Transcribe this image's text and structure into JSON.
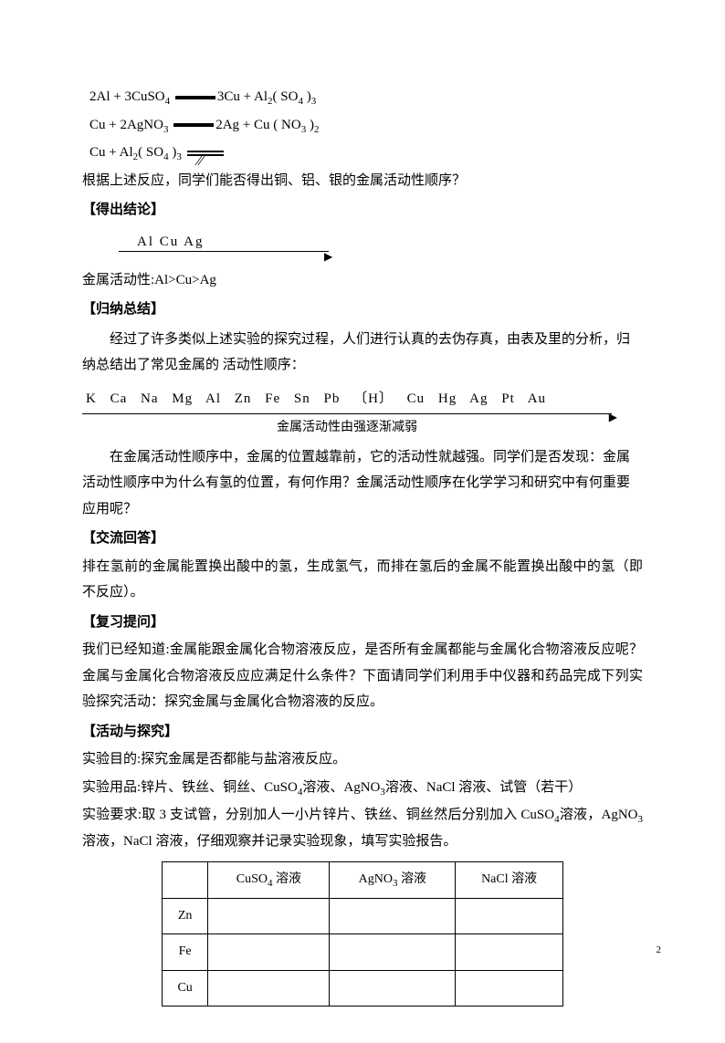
{
  "equations": {
    "eq1_left": "2Al + 3CuSO",
    "eq1_left2": " ",
    "eq1_right": "3Cu + Al",
    "eq1_right2": "( SO",
    "eq1_right3": " )",
    "eq2_left": "Cu + 2AgNO",
    "eq2_right": "2Ag + Cu ( NO",
    "eq2_right2": " )",
    "eq3_left": "Cu + Al",
    "eq3_left2": "( SO",
    "eq3_left3": " )"
  },
  "text": {
    "q1": "根据上述反应，同学们能否得出铜、铝、银的金属活动性顺序？",
    "h1": "【得出结论】",
    "arrow_elements": "Al        Cu         Ag",
    "activity_line": "金属活动性:Al>Cu>Ag",
    "h2": "【归纳总结】",
    "p1": "经过了许多类似上述实验的探究过程，人们进行认真的去伪存真，由表及里的分析，归纳总结出了常见金属的 活动性顺序：",
    "series_elements": "K Ca Na Mg Al Zn Fe Sn Pb 〔H〕 Cu Hg Ag Pt Au",
    "series_caption": "金属活动性由强逐渐减弱",
    "p2": "在金属活动性顺序中，金属的位置越靠前，它的活动性就越强。同学们是否发现：金属活动性顺序中为什么有氢的位置，有何作用？金属活动性顺序在化学学习和研究中有何重要应用呢？",
    "h3": "【交流回答】",
    "p3": "排在氢前的金属能置换出酸中的氢，生成氢气，而排在氢后的金属不能置换出酸中的氢（即不反应）。",
    "h4": "【复习提问】",
    "p4": "我们已经知道:金属能跟金属化合物溶液反应，是否所有金属都能与金属化合物溶液反应呢？金属与金属化合物溶液反应应满足什么条件？下面请同学们利用手中仪器和药品完成下列实验探究活动：探究金属与金属化合物溶液的反应。",
    "h5": "【活动与探究】",
    "p5": "实验目的:探究金属是否都能与盐溶液反应。",
    "p6a": "实验用品:锌片、铁丝、铜丝、CuSO",
    "p6b": "溶液、AgNO",
    "p6c": "溶液、NaCl 溶液、试管（若干）",
    "p7a": "实验要求:取 3 支试管，分别加人一小片锌片、铁丝、铜丝然后分别加入 CuSO",
    "p7b": "溶液，AgNO",
    "p7c": "溶液，NaCl 溶液，仔细观察并记录实验现象，填写实验报告。"
  },
  "table": {
    "col1_a": "CuSO",
    "col1_b": " 溶液",
    "col2_a": "AgNO",
    "col2_b": " 溶液",
    "col3": "NaCl 溶液",
    "row1": "Zn",
    "row2": "Fe",
    "row3": "Cu"
  },
  "page_number": "2"
}
